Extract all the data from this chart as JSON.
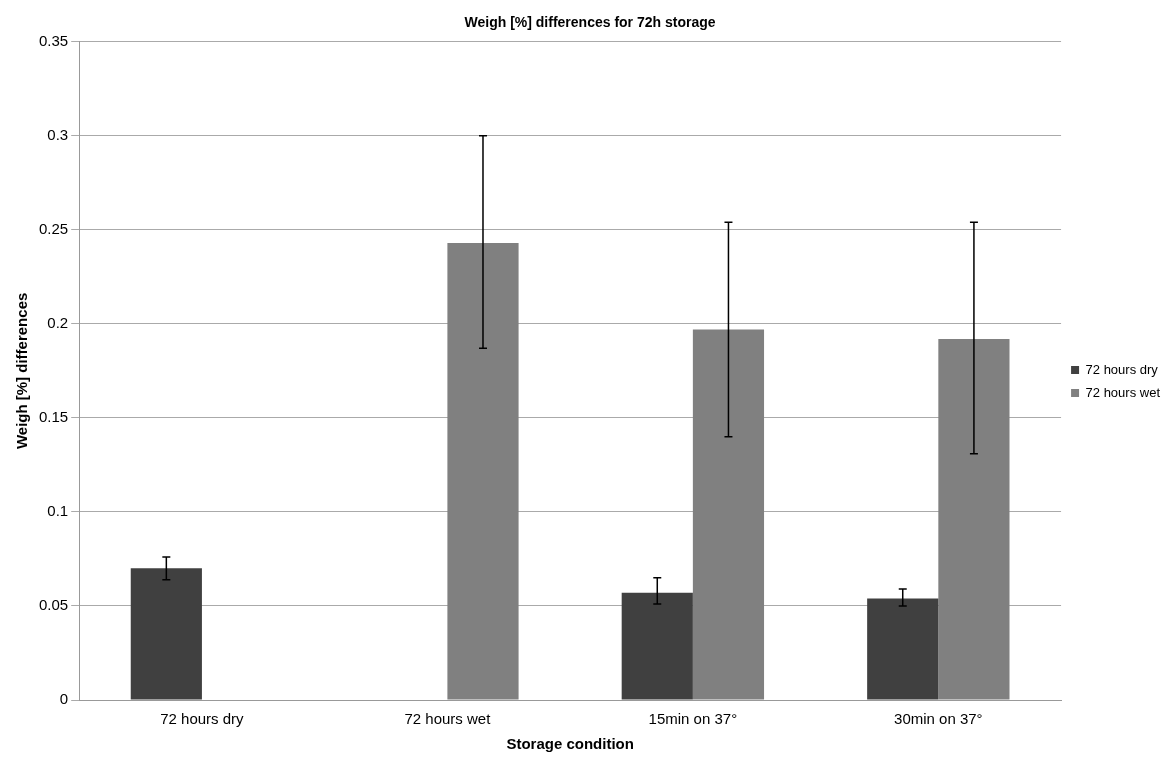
{
  "chart_data": {
    "type": "bar",
    "title": "Weigh [%] differences for 72h storage",
    "xlabel": "Storage condition",
    "ylabel": "Weigh [%] differences",
    "categories": [
      "72 hours dry",
      "72 hours wet",
      "15min on 37°",
      "30min on 37°"
    ],
    "series": [
      {
        "name": "72 hours dry",
        "color": "#404040",
        "values": [
          0.07,
          null,
          0.057,
          0.054
        ],
        "errors": [
          [
            0.064,
            0.076
          ],
          null,
          [
            0.051,
            0.065
          ],
          [
            0.05,
            0.059
          ]
        ]
      },
      {
        "name": "72 hours wet",
        "color": "#808080",
        "values": [
          null,
          0.243,
          0.197,
          0.192
        ],
        "errors": [
          null,
          [
            0.187,
            0.3
          ],
          [
            0.14,
            0.254
          ],
          [
            0.131,
            0.254
          ]
        ]
      }
    ],
    "ylim": [
      0,
      0.35
    ],
    "yticks": [
      0,
      0.05,
      0.1,
      0.15,
      0.2,
      0.25,
      0.3,
      0.35
    ],
    "grid": "y",
    "legend": "right"
  }
}
